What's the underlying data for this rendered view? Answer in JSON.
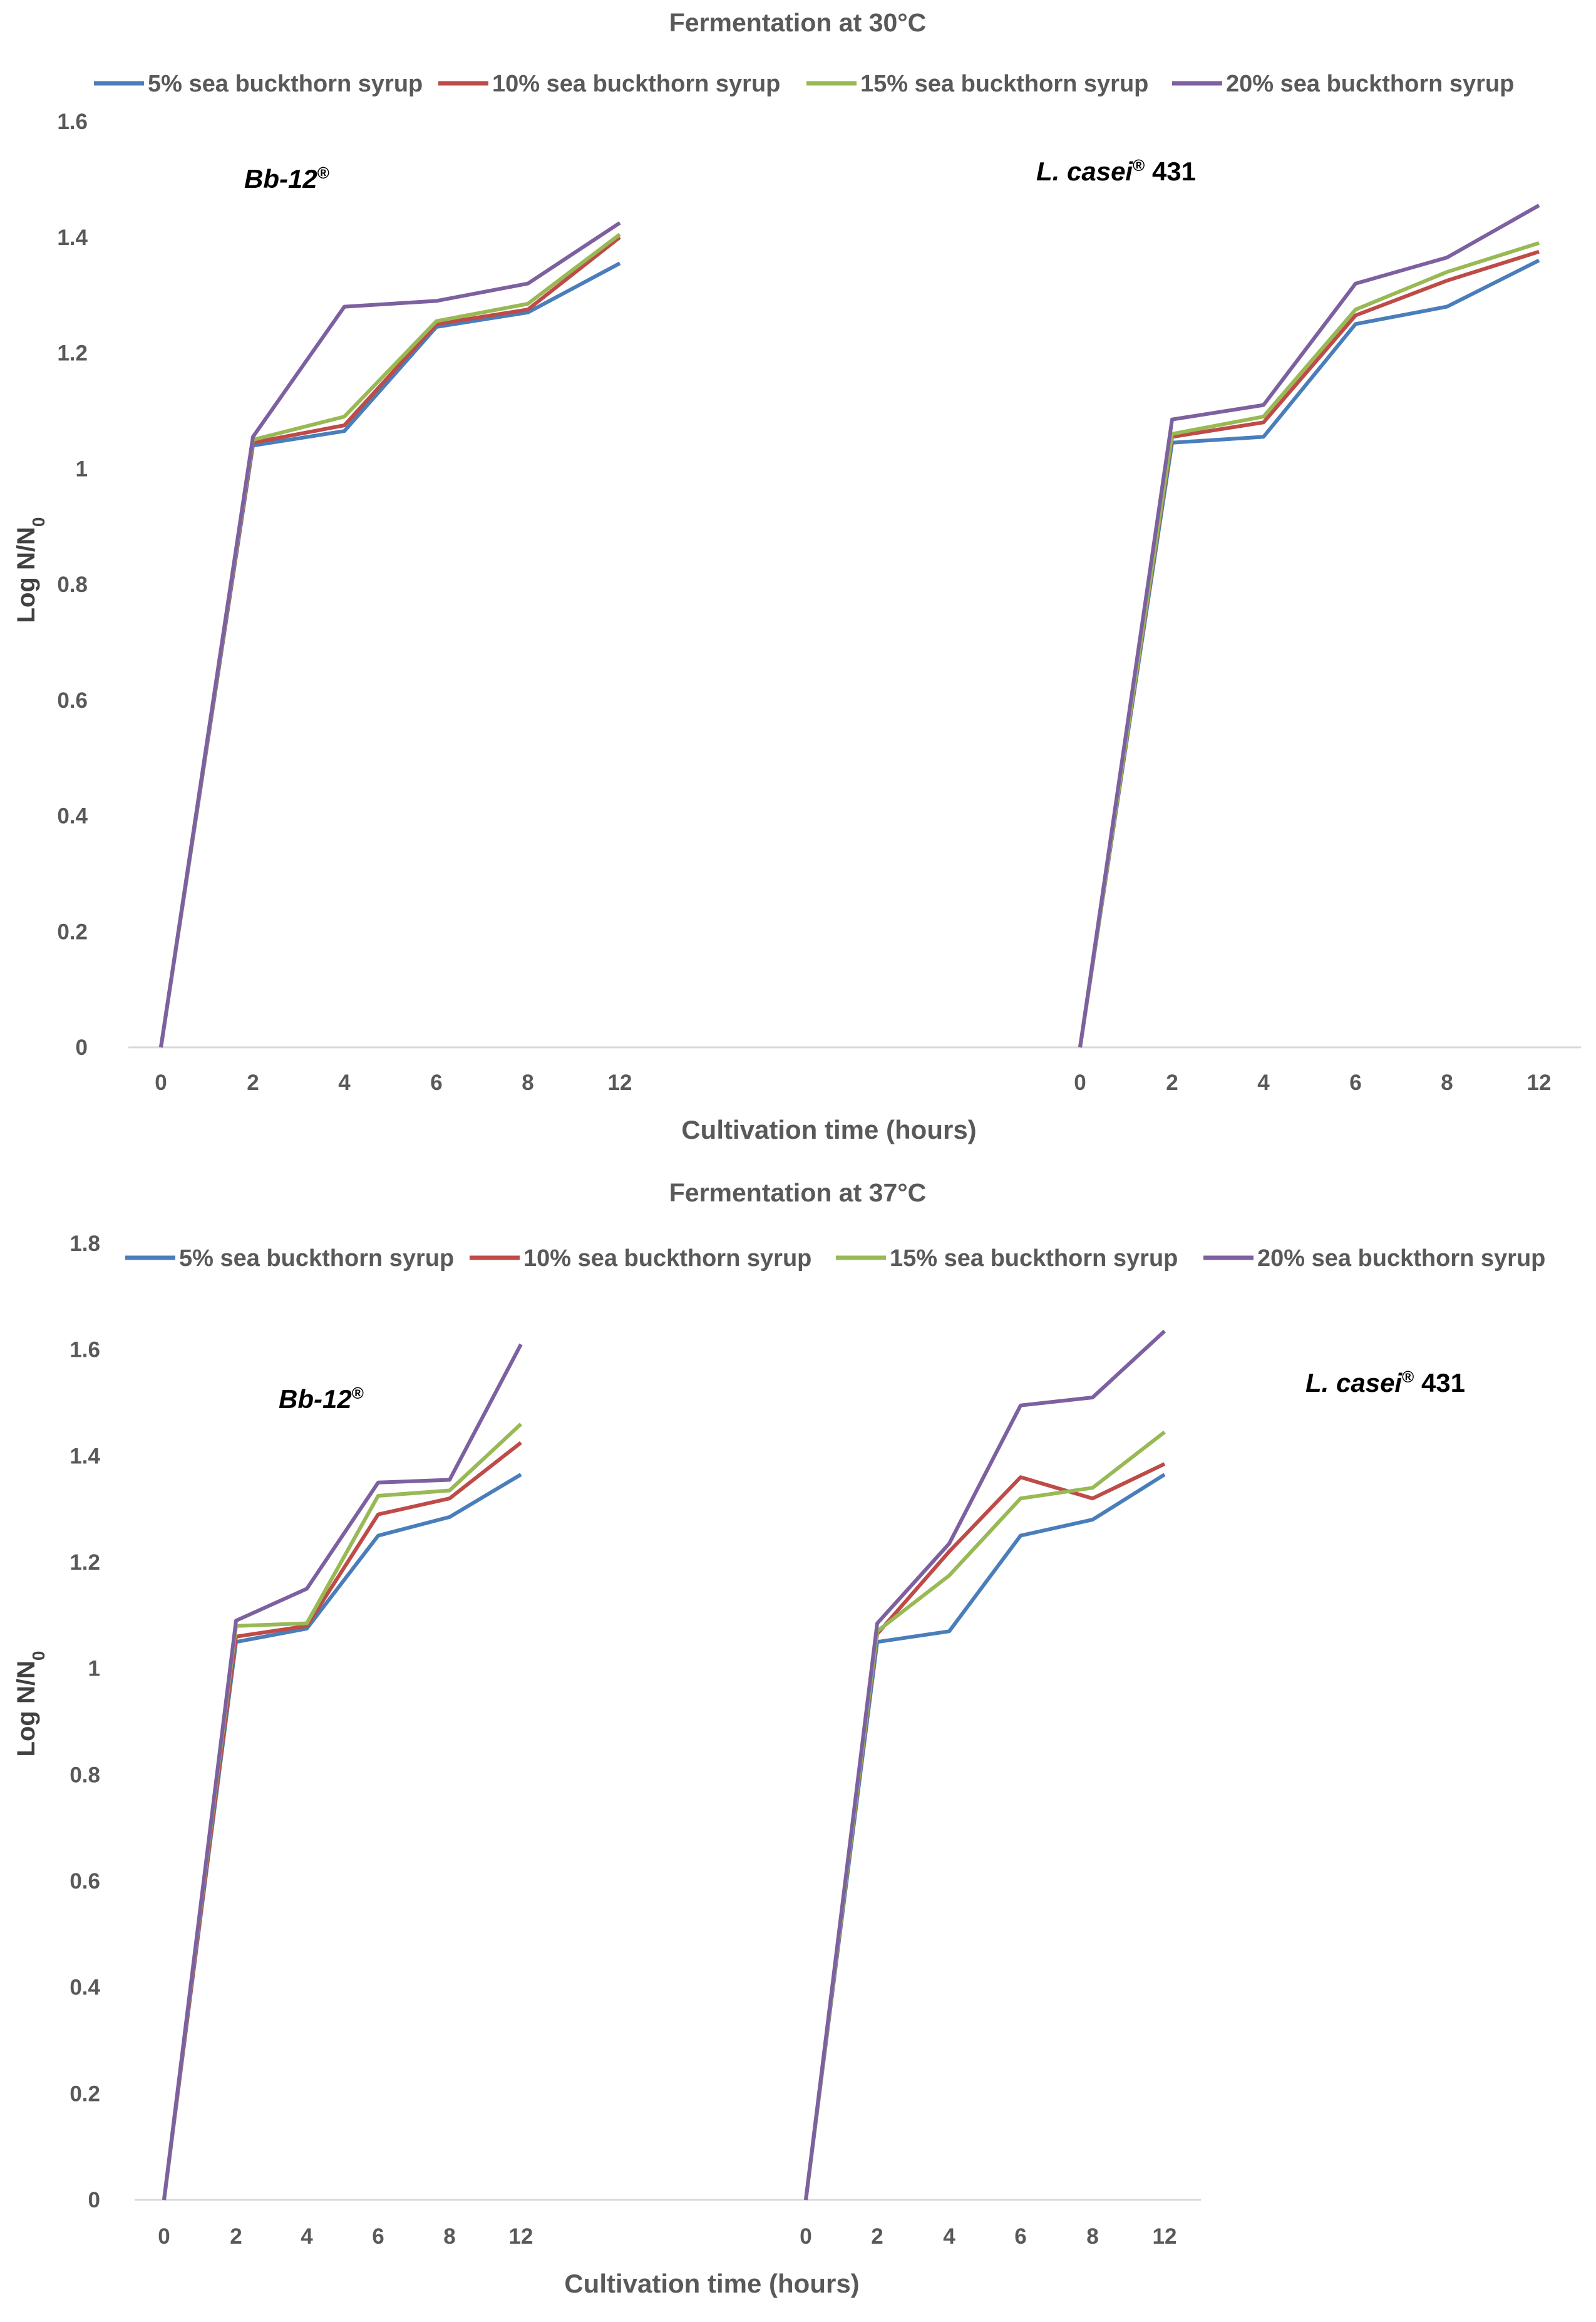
{
  "chart_data": [
    {
      "type": "line",
      "title": "Fermentation at 30°C",
      "xlabel": "Cultivation time (hours)",
      "ylabel": "Log N/N",
      "ylabel_sub": "0",
      "ylim": [
        0,
        1.6
      ],
      "yticks": [
        "0",
        "0.2",
        "0.4",
        "0.6",
        "0.8",
        "1",
        "1.2",
        "1.4",
        "1.6"
      ],
      "legend": [
        "5% sea buckthorn syrup",
        "10% sea buckthorn syrup",
        "15% sea buckthorn syrup",
        "20% sea buckthorn syrup"
      ],
      "colors": [
        "#4a7ebb",
        "#be4b48",
        "#98b954",
        "#7d60a0"
      ],
      "panels": [
        {
          "strain_label": "Bb-12",
          "strain_sup": "®",
          "strain_suffix": "",
          "strain_italic": true,
          "categories": [
            "0",
            "2",
            "4",
            "6",
            "8",
            "12"
          ],
          "series": [
            {
              "name": "5% sea buckthorn syrup",
              "values": [
                0,
                1.04,
                1.065,
                1.245,
                1.27,
                1.355
              ]
            },
            {
              "name": "10% sea buckthorn syrup",
              "values": [
                0,
                1.045,
                1.075,
                1.25,
                1.275,
                1.4
              ]
            },
            {
              "name": "15% sea buckthorn syrup",
              "values": [
                0,
                1.05,
                1.09,
                1.255,
                1.285,
                1.405
              ]
            },
            {
              "name": "20% sea buckthorn syrup",
              "values": [
                0,
                1.055,
                1.28,
                1.29,
                1.32,
                1.425
              ]
            }
          ]
        },
        {
          "strain_label": "L. casei",
          "strain_sup": "®",
          "strain_suffix": " 431",
          "strain_italic": true,
          "categories": [
            "0",
            "2",
            "4",
            "6",
            "8",
            "12"
          ],
          "series": [
            {
              "name": "5% sea buckthorn syrup",
              "values": [
                0,
                1.045,
                1.055,
                1.25,
                1.28,
                1.36
              ]
            },
            {
              "name": "10% sea buckthorn syrup",
              "values": [
                0,
                1.055,
                1.08,
                1.265,
                1.325,
                1.375
              ]
            },
            {
              "name": "15% sea buckthorn syrup",
              "values": [
                0,
                1.06,
                1.09,
                1.275,
                1.34,
                1.39
              ]
            },
            {
              "name": "20% sea buckthorn syrup",
              "values": [
                0,
                1.085,
                1.11,
                1.32,
                1.365,
                1.455
              ]
            }
          ]
        }
      ]
    },
    {
      "type": "line",
      "title": "Fermentation at 37°C",
      "xlabel": "Cultivation time (hours)",
      "ylabel": "Log N/N",
      "ylabel_sub": "0",
      "ylim": [
        0,
        1.8
      ],
      "yticks": [
        "0",
        "0.2",
        "0.4",
        "0.6",
        "0.8",
        "1",
        "1.2",
        "1.4",
        "1.6",
        "1.8"
      ],
      "legend": [
        "5% sea buckthorn syrup",
        "10% sea buckthorn syrup",
        "15% sea buckthorn syrup",
        "20% sea buckthorn syrup"
      ],
      "colors": [
        "#4a7ebb",
        "#be4b48",
        "#98b954",
        "#7d60a0"
      ],
      "panels": [
        {
          "strain_label": "Bb-12",
          "strain_sup": "®",
          "strain_suffix": "",
          "strain_italic": true,
          "categories": [
            "0",
            "2",
            "4",
            "6",
            "8",
            "12"
          ],
          "series": [
            {
              "name": "5% sea buckthorn syrup",
              "values": [
                0,
                1.05,
                1.075,
                1.25,
                1.285,
                1.365
              ]
            },
            {
              "name": "10% sea buckthorn syrup",
              "values": [
                0,
                1.06,
                1.08,
                1.29,
                1.32,
                1.425
              ]
            },
            {
              "name": "15% sea buckthorn syrup",
              "values": [
                0,
                1.08,
                1.085,
                1.325,
                1.335,
                1.46
              ]
            },
            {
              "name": "20% sea buckthorn syrup",
              "values": [
                0,
                1.09,
                1.15,
                1.35,
                1.355,
                1.61
              ]
            }
          ]
        },
        {
          "strain_label": "L. casei",
          "strain_sup": "®",
          "strain_suffix": " 431",
          "strain_italic": true,
          "categories": [
            "0",
            "2",
            "4",
            "6",
            "8",
            "12"
          ],
          "series": [
            {
              "name": "5% sea buckthorn syrup",
              "values": [
                0,
                1.05,
                1.07,
                1.25,
                1.28,
                1.365
              ]
            },
            {
              "name": "10% sea buckthorn syrup",
              "values": [
                0,
                1.065,
                1.22,
                1.36,
                1.32,
                1.385
              ]
            },
            {
              "name": "15% sea buckthorn syrup",
              "values": [
                0,
                1.07,
                1.175,
                1.32,
                1.34,
                1.445
              ]
            },
            {
              "name": "20% sea buckthorn syrup",
              "values": [
                0,
                1.085,
                1.235,
                1.495,
                1.51,
                1.635
              ]
            }
          ]
        }
      ]
    }
  ]
}
